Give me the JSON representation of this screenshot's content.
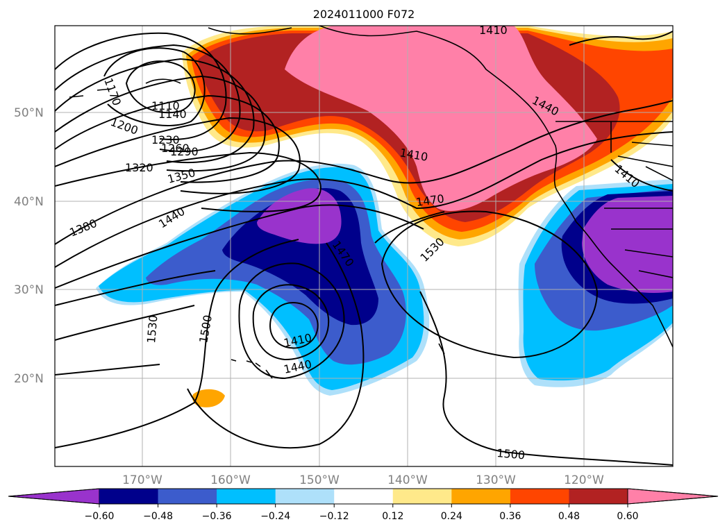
{
  "title": "2024011000 F072",
  "lat_labels": [
    "50°N",
    "40°N",
    "30°N",
    "20°N"
  ],
  "lon_labels": [
    "170°W",
    "160°W",
    "150°W",
    "140°W",
    "130°W",
    "120°W"
  ],
  "contour_labels": [
    "1170",
    "1110",
    "1140",
    "1200",
    "1230",
    "1260",
    "1290",
    "1320",
    "1350",
    "1380",
    "1440",
    "1410",
    "1440",
    "1410",
    "1470",
    "1470",
    "1530",
    "1530",
    "1500",
    "1410",
    "1440",
    "1410",
    "1500"
  ],
  "colorbar": {
    "ticks": [
      "−0.60",
      "−0.48",
      "−0.36",
      "−0.24",
      "−0.12",
      "0.12",
      "0.24",
      "0.36",
      "0.48",
      "0.60"
    ],
    "colors": [
      "#9933cc",
      "#00008b",
      "#3c5ccc",
      "#00bfff",
      "#aee0fa",
      "#ffffff",
      "#ffe98a",
      "#ffa500",
      "#ff4500",
      "#b22222",
      "#ff80a8"
    ]
  },
  "map_extent": {
    "lon": [
      -180,
      -110
    ],
    "lat": [
      10,
      60
    ]
  }
}
